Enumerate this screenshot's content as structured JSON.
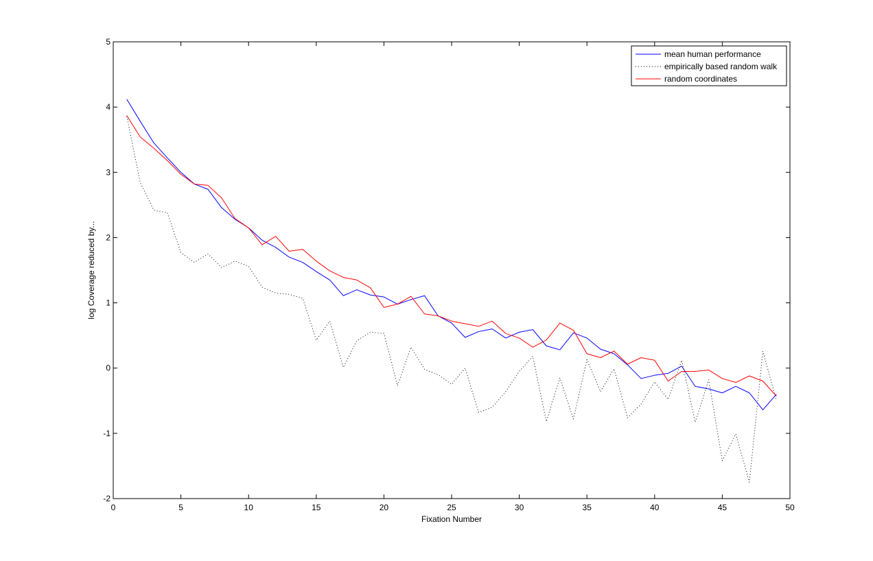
{
  "chart_data": {
    "type": "line",
    "title": "",
    "xlabel": "Fixation Number",
    "ylabel": "log Coverage reduced by...",
    "xlim": [
      0,
      50
    ],
    "ylim": [
      -2,
      5
    ],
    "xticks": [
      0,
      5,
      10,
      15,
      20,
      25,
      30,
      35,
      40,
      45,
      50
    ],
    "yticks": [
      -2,
      -1,
      0,
      1,
      2,
      3,
      4,
      5
    ],
    "grid": false,
    "legend_position": "top-right",
    "x": [
      1,
      2,
      3,
      4,
      5,
      6,
      7,
      8,
      9,
      10,
      11,
      12,
      13,
      14,
      15,
      16,
      17,
      18,
      19,
      20,
      21,
      22,
      23,
      24,
      25,
      26,
      27,
      28,
      29,
      30,
      31,
      32,
      33,
      34,
      35,
      36,
      37,
      38,
      39,
      40,
      41,
      42,
      43,
      44,
      45,
      46,
      47,
      48,
      49
    ],
    "series": [
      {
        "name": "mean human performance",
        "color": "#0000ff",
        "dash": "solid",
        "values": [
          4.12,
          3.78,
          3.45,
          3.22,
          3.0,
          2.82,
          2.74,
          2.46,
          2.28,
          2.15,
          1.96,
          1.85,
          1.7,
          1.62,
          1.48,
          1.35,
          1.11,
          1.2,
          1.12,
          1.09,
          0.98,
          1.05,
          1.11,
          0.8,
          0.69,
          0.47,
          0.56,
          0.6,
          0.46,
          0.55,
          0.59,
          0.34,
          0.28,
          0.54,
          0.46,
          0.29,
          0.22,
          0.05,
          -0.16,
          -0.11,
          -0.08,
          0.03,
          -0.28,
          -0.32,
          -0.38,
          -0.28,
          -0.38,
          -0.64,
          -0.4
        ]
      },
      {
        "name": "empirically based random walk",
        "color": "#000000",
        "dash": "dotted",
        "values": [
          3.86,
          2.84,
          2.42,
          2.38,
          1.77,
          1.62,
          1.75,
          1.54,
          1.64,
          1.56,
          1.24,
          1.15,
          1.13,
          1.07,
          0.43,
          0.72,
          0.01,
          0.42,
          0.55,
          0.53,
          -0.27,
          0.32,
          -0.02,
          -0.1,
          -0.25,
          0.0,
          -0.68,
          -0.6,
          -0.36,
          -0.05,
          0.18,
          -0.82,
          -0.15,
          -0.78,
          0.13,
          -0.36,
          -0.01,
          -0.76,
          -0.55,
          -0.21,
          -0.48,
          0.12,
          -0.83,
          -0.18,
          -1.42,
          -1.01,
          -1.75,
          0.26,
          -0.5
        ]
      },
      {
        "name": "random coordinates",
        "color": "#ff0000",
        "dash": "solid",
        "values": [
          3.87,
          3.54,
          3.37,
          3.18,
          2.97,
          2.82,
          2.8,
          2.61,
          2.29,
          2.15,
          1.89,
          2.02,
          1.79,
          1.82,
          1.64,
          1.49,
          1.39,
          1.35,
          1.23,
          0.93,
          0.98,
          1.1,
          0.83,
          0.8,
          0.72,
          0.68,
          0.64,
          0.72,
          0.53,
          0.46,
          0.32,
          0.43,
          0.69,
          0.58,
          0.22,
          0.16,
          0.26,
          0.06,
          0.16,
          0.12,
          -0.2,
          -0.05,
          -0.05,
          -0.03,
          -0.16,
          -0.22,
          -0.12,
          -0.2,
          -0.43
        ]
      }
    ]
  }
}
